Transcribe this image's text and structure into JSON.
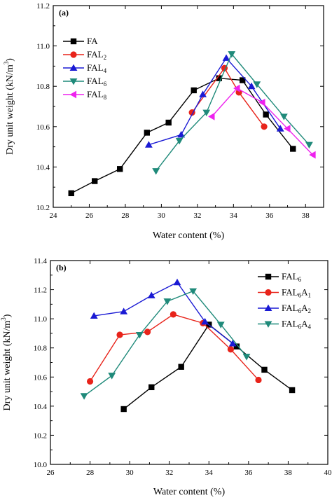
{
  "chart_data": [
    {
      "type": "line",
      "panel_label": "(a)",
      "xlabel": "Water content (%)",
      "ylabel": "Dry unit weight (kN/m",
      "ylabel_sup": "3",
      "ylabel_end": ")",
      "xlim": [
        24,
        39
      ],
      "ylim": [
        10.2,
        11.2
      ],
      "xticks": [
        "24",
        "26",
        "28",
        "30",
        "32",
        "34",
        "36",
        "38"
      ],
      "yticks": [
        "10.2",
        "10.4",
        "10.6",
        "10.8",
        "11.0",
        "11.2"
      ],
      "legend_position": "upper-left",
      "series": [
        {
          "name": "FA",
          "base": "FA",
          "sub": "",
          "sub2": "",
          "color": "#000000",
          "marker": "square",
          "x": [
            25.0,
            26.3,
            27.7,
            29.2,
            30.4,
            31.8,
            33.2,
            34.5,
            35.8,
            37.3
          ],
          "y": [
            10.27,
            10.33,
            10.39,
            10.57,
            10.62,
            10.78,
            10.84,
            10.83,
            10.66,
            10.49
          ]
        },
        {
          "name": "FAL2",
          "base": "FAL",
          "sub": "2",
          "sub2": "",
          "color": "#e8231a",
          "marker": "circle",
          "x": [
            31.7,
            33.5,
            34.3,
            35.7
          ],
          "y": [
            10.67,
            10.89,
            10.77,
            10.6
          ]
        },
        {
          "name": "FAL4",
          "base": "FAL",
          "sub": "4",
          "sub2": "",
          "color": "#1a1ad4",
          "marker": "triangle",
          "x": [
            29.3,
            31.1,
            32.3,
            33.6,
            35.0,
            36.6
          ],
          "y": [
            10.51,
            10.56,
            10.76,
            10.94,
            10.8,
            10.59
          ]
        },
        {
          "name": "FAL6",
          "base": "FAL",
          "sub": "6",
          "sub2": "",
          "color": "#1f8a7a",
          "marker": "triangle-down",
          "x": [
            29.7,
            31.0,
            32.5,
            33.9,
            35.3,
            36.8,
            38.2
          ],
          "y": [
            10.38,
            10.53,
            10.67,
            10.96,
            10.81,
            10.65,
            10.51
          ]
        },
        {
          "name": "FAL8",
          "base": "FAL",
          "sub": "8",
          "sub2": "",
          "color": "#ee22ee",
          "marker": "triangle-left",
          "x": [
            32.8,
            34.2,
            35.6,
            37.0,
            38.4
          ],
          "y": [
            10.65,
            10.79,
            10.72,
            10.59,
            10.46
          ]
        }
      ]
    },
    {
      "type": "line",
      "panel_label": "(b)",
      "xlabel": "Water content (%)",
      "ylabel": "Dry unit weight (kN/m",
      "ylabel_sup": "3",
      "ylabel_end": ")",
      "xlim": [
        26,
        40
      ],
      "ylim": [
        10.0,
        11.4
      ],
      "xticks": [
        "26",
        "28",
        "30",
        "32",
        "34",
        "36",
        "38",
        "40"
      ],
      "yticks": [
        "10.0",
        "10.2",
        "10.4",
        "10.6",
        "10.8",
        "11.0",
        "11.2",
        "11.4"
      ],
      "legend_position": "upper-right",
      "series": [
        {
          "name": "FAL6",
          "base": "FAL",
          "sub": "6",
          "sub2": "",
          "color": "#000000",
          "marker": "square",
          "x": [
            29.7,
            31.1,
            32.6,
            34.0,
            35.4,
            36.8,
            38.2
          ],
          "y": [
            10.38,
            10.53,
            10.67,
            10.96,
            10.81,
            10.65,
            10.51
          ]
        },
        {
          "name": "FAL6A1",
          "base": "FAL",
          "sub": "6",
          "sub2": "1",
          "color": "#e8231a",
          "marker": "circle",
          "x": [
            28.0,
            29.5,
            30.9,
            32.2,
            33.7,
            35.1,
            36.5
          ],
          "y": [
            10.57,
            10.89,
            10.91,
            11.03,
            10.97,
            10.79,
            10.58
          ]
        },
        {
          "name": "FAL6A2",
          "base": "FAL",
          "sub": "6",
          "sub2": "2",
          "color": "#1a1ad4",
          "marker": "triangle",
          "x": [
            28.2,
            29.7,
            31.1,
            32.4,
            33.8,
            35.2
          ],
          "y": [
            11.02,
            11.05,
            11.16,
            11.25,
            10.98,
            10.83
          ]
        },
        {
          "name": "FAL6A4",
          "base": "FAL",
          "sub": "6",
          "sub2": "4",
          "color": "#1f8a7a",
          "marker": "triangle-down",
          "x": [
            27.7,
            29.1,
            30.5,
            31.9,
            33.2,
            34.6,
            35.9
          ],
          "y": [
            10.47,
            10.61,
            10.89,
            11.12,
            11.19,
            10.96,
            10.74
          ]
        }
      ]
    }
  ]
}
